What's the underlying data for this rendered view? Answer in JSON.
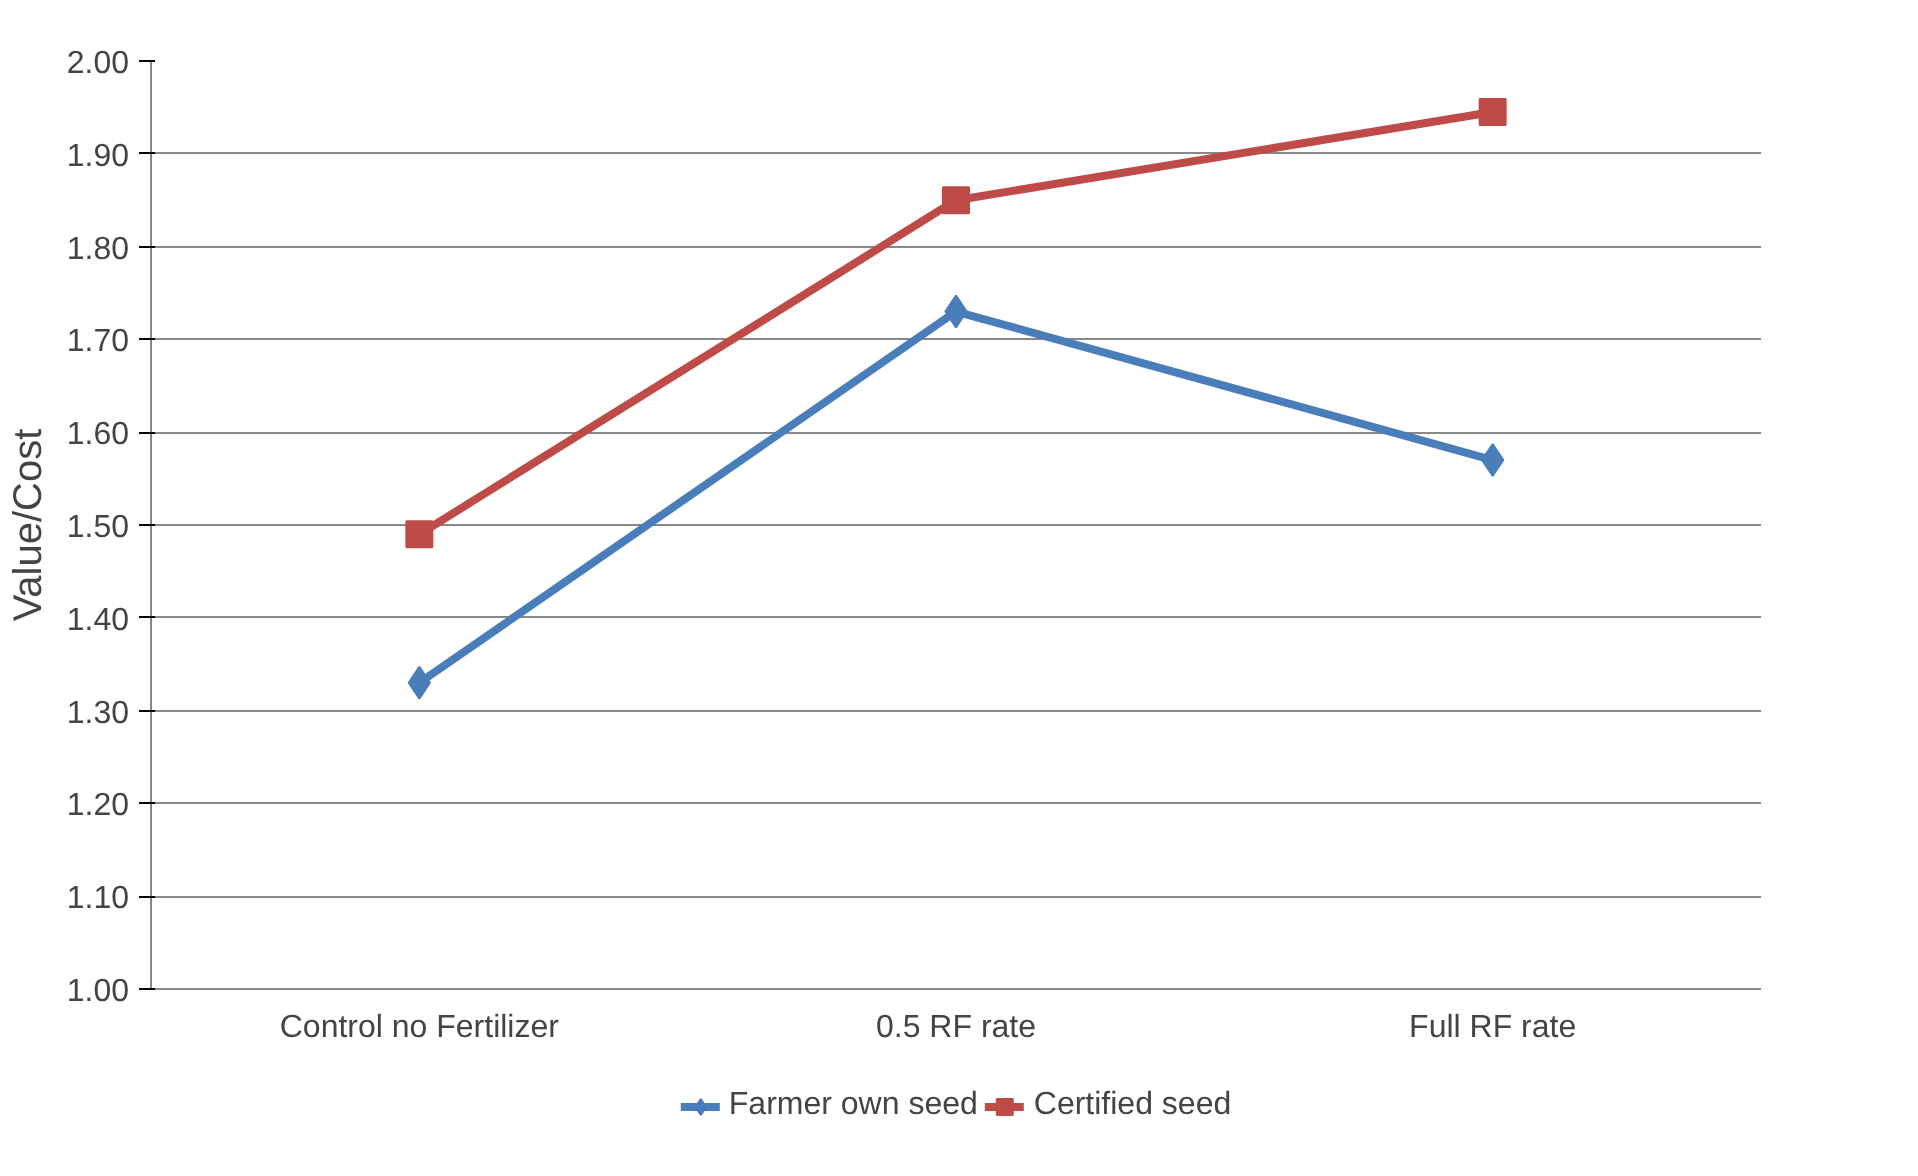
{
  "chart_data": {
    "type": "line",
    "ylabel": "Value/Cost",
    "categories": [
      "Control no Fertilizer",
      "0.5 RF rate",
      "Full RF rate"
    ],
    "series": [
      {
        "name": "Farmer own seed",
        "color": "#4a7ebb",
        "marker": "diamond",
        "values": [
          1.33,
          1.73,
          1.57
        ]
      },
      {
        "name": "Certified seed",
        "color": "#be4b48",
        "marker": "square",
        "values": [
          1.49,
          1.85,
          1.945
        ]
      }
    ],
    "ylim": [
      1.0,
      2.0
    ],
    "yticks": [
      {
        "value": 1.0,
        "label": "1.00"
      },
      {
        "value": 1.1,
        "label": "1.10"
      },
      {
        "value": 1.2,
        "label": "1.20"
      },
      {
        "value": 1.3,
        "label": "1.30"
      },
      {
        "value": 1.4,
        "label": "1.40"
      },
      {
        "value": 1.5,
        "label": "1.50"
      },
      {
        "value": 1.6,
        "label": "1.60"
      },
      {
        "value": 1.7,
        "label": "1.70"
      },
      {
        "value": 1.8,
        "label": "1.80"
      },
      {
        "value": 1.9,
        "label": "1.90"
      },
      {
        "value": 2.0,
        "label": "2.00"
      }
    ],
    "grid": "y",
    "legend": "bottom",
    "line_style": "solid"
  }
}
